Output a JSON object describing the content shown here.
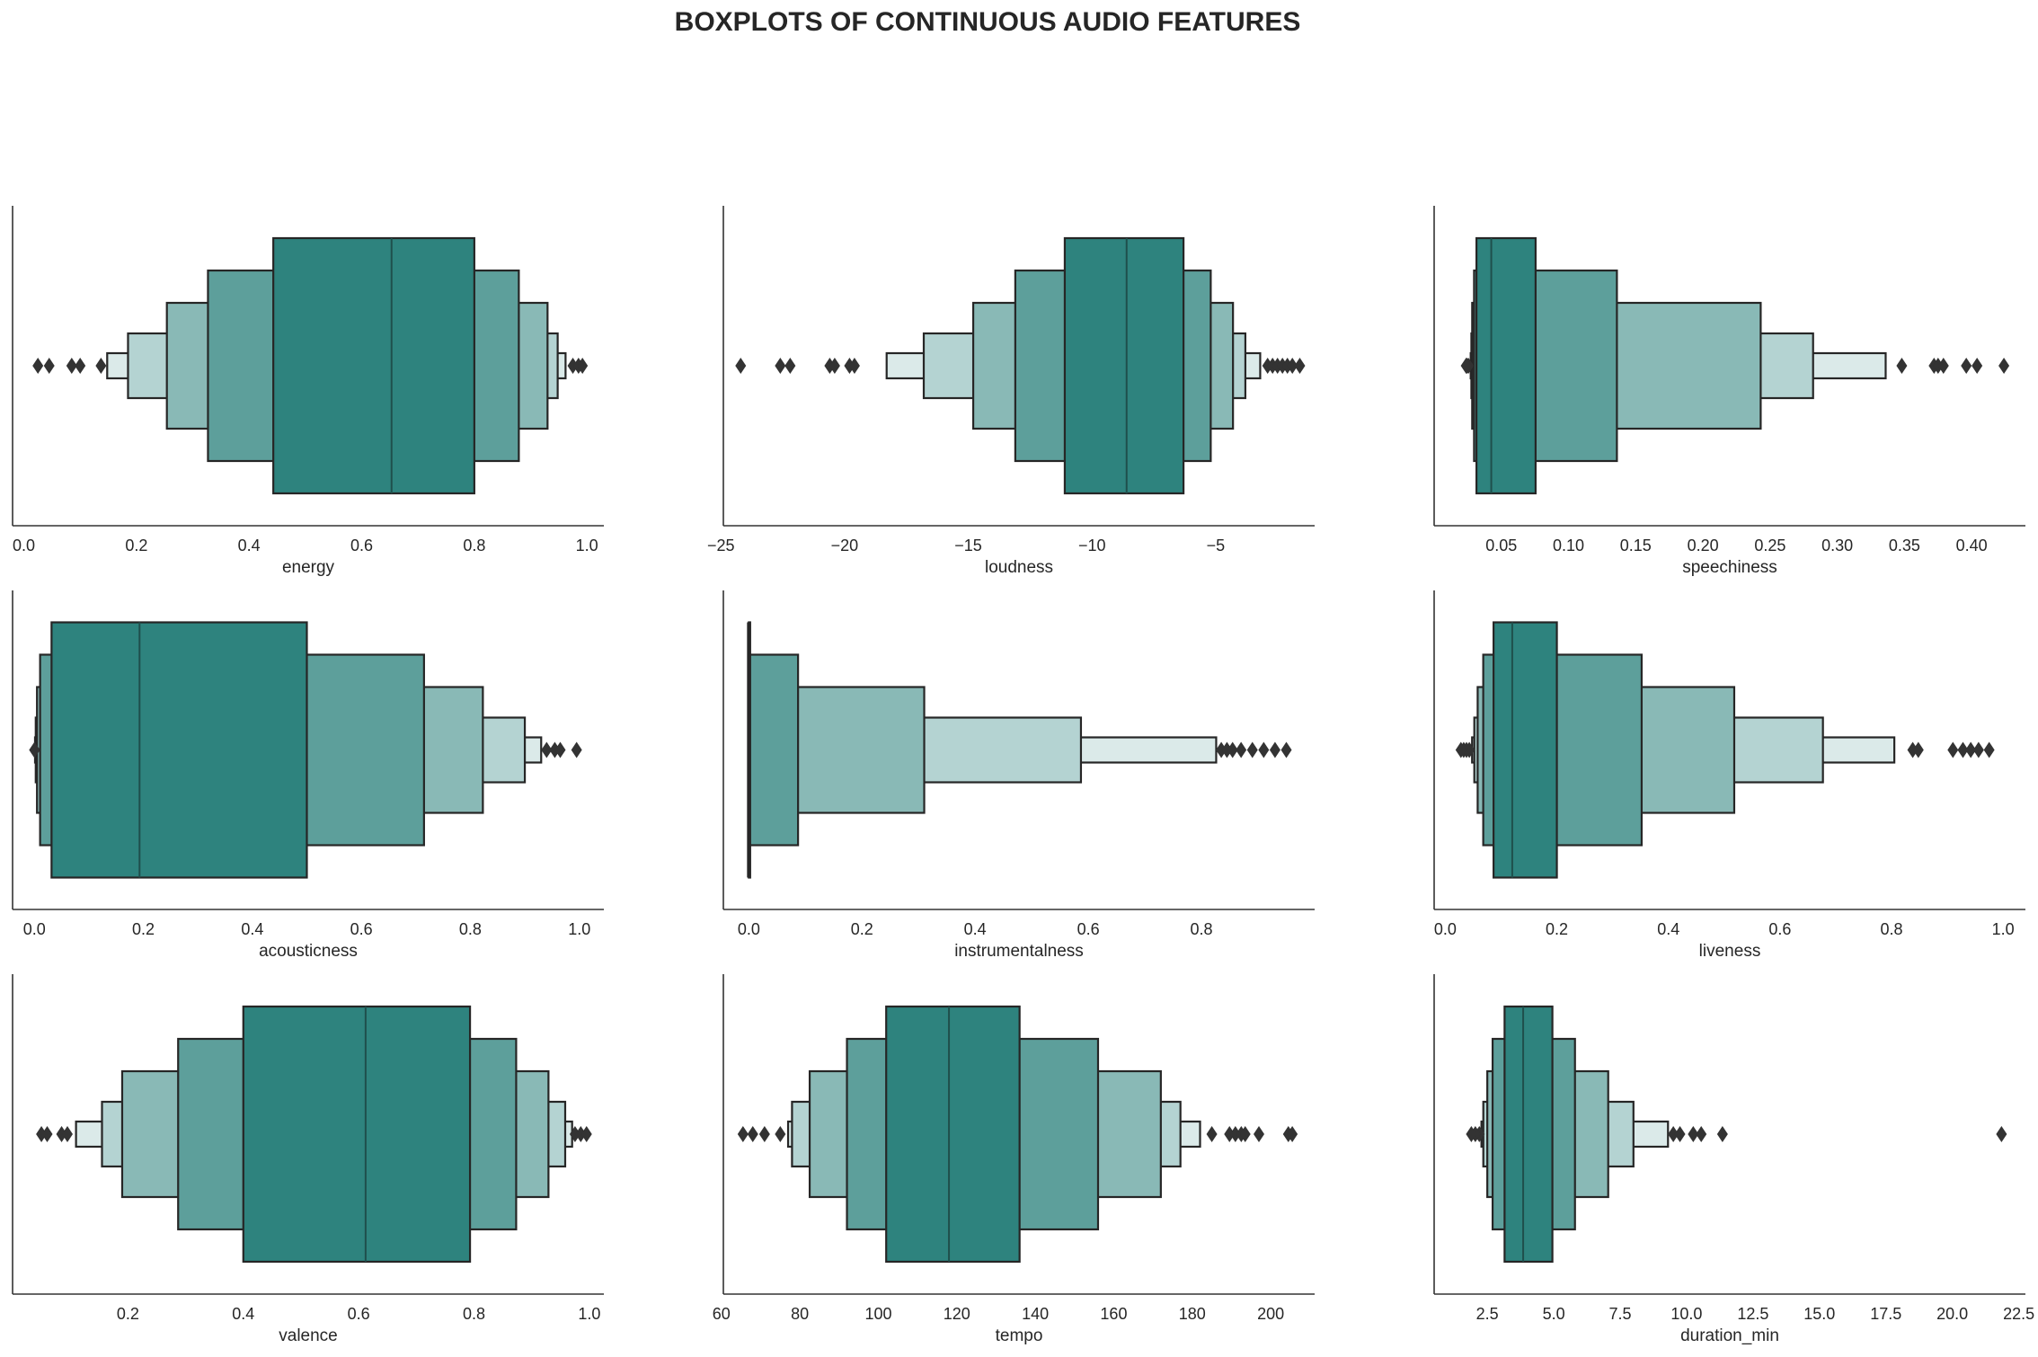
{
  "figure": {
    "title": "BOXPLOTS OF CONTINUOUS AUDIO FEATURES"
  },
  "chart_data": [
    {
      "type": "boxen",
      "xlabel": "energy",
      "xlim": [
        -0.02,
        1.03
      ],
      "ticks": [
        0.0,
        0.2,
        0.4,
        0.6,
        0.8,
        1.0
      ],
      "tick_labels": [
        "0.0",
        "0.2",
        "0.4",
        "0.6",
        "0.8",
        "1.0"
      ],
      "median": 0.653,
      "levels": [
        [
          0.443,
          0.8
        ],
        [
          0.327,
          0.879
        ],
        [
          0.254,
          0.93
        ],
        [
          0.185,
          0.948
        ],
        [
          0.148,
          0.962
        ]
      ],
      "outliers": [
        0.025,
        0.045,
        0.085,
        0.1,
        0.137,
        0.975,
        0.985,
        0.992
      ]
    },
    {
      "type": "boxen",
      "xlabel": "loudness",
      "xlim": [
        -24.9,
        -1.0
      ],
      "ticks": [
        -25,
        -20,
        -15,
        -10,
        -5
      ],
      "tick_labels": [
        "−25",
        "−20",
        "−15",
        "−10",
        "−5"
      ],
      "median": -8.6,
      "levels": [
        [
          -11.1,
          -6.3
        ],
        [
          -13.1,
          -5.2
        ],
        [
          -14.8,
          -4.3
        ],
        [
          -16.8,
          -3.8
        ],
        [
          -18.3,
          -3.2
        ]
      ],
      "outliers": [
        -24.2,
        -22.6,
        -22.2,
        -20.6,
        -20.4,
        -19.8,
        -19.6,
        -2.9,
        -2.7,
        -2.5,
        -2.3,
        -2.1,
        -1.9,
        -1.6
      ]
    },
    {
      "type": "boxen",
      "xlabel": "speechiness",
      "xlim": [
        0.0,
        0.44
      ],
      "ticks": [
        0.05,
        0.1,
        0.15,
        0.2,
        0.25,
        0.3,
        0.35,
        0.4
      ],
      "tick_labels": [
        "0.05",
        "0.10",
        "0.15",
        "0.20",
        "0.25",
        "0.30",
        "0.35",
        "0.40"
      ],
      "median": 0.0425,
      "levels": [
        [
          0.0315,
          0.0755
        ],
        [
          0.0297,
          0.136
        ],
        [
          0.0283,
          0.243
        ],
        [
          0.0277,
          0.282
        ],
        [
          0.0272,
          0.336
        ]
      ],
      "outliers": [
        0.0255,
        0.0245,
        0.0238,
        0.348,
        0.372,
        0.375,
        0.379,
        0.396,
        0.404,
        0.424
      ]
    },
    {
      "type": "boxen",
      "xlabel": "acousticness",
      "xlim": [
        -0.04,
        1.045
      ],
      "ticks": [
        0.0,
        0.2,
        0.4,
        0.6,
        0.8,
        1.0
      ],
      "tick_labels": [
        "0.0",
        "0.2",
        "0.4",
        "0.6",
        "0.8",
        "1.0"
      ],
      "median": 0.193,
      "levels": [
        [
          0.0315,
          0.5
        ],
        [
          0.0105,
          0.715
        ],
        [
          0.0048,
          0.823
        ],
        [
          0.0025,
          0.9
        ],
        [
          0.0012,
          0.93
        ]
      ],
      "outliers": [
        0.0005,
        0.0002,
        0.94,
        0.955,
        0.965,
        0.995
      ]
    },
    {
      "type": "boxen",
      "xlabel": "instrumentalness",
      "xlim": [
        -0.045,
        1.0
      ],
      "ticks": [
        0.0,
        0.2,
        0.4,
        0.6,
        0.8
      ],
      "tick_labels": [
        "0.0",
        "0.2",
        "0.4",
        "0.6",
        "0.8"
      ],
      "median": 0.0,
      "levels": [
        [
          0.0,
          0.0005
        ],
        [
          0.0,
          0.087
        ],
        [
          0.0,
          0.31
        ],
        [
          0.0,
          0.587
        ],
        [
          0.0,
          0.826
        ]
      ],
      "outliers": [
        0.835,
        0.845,
        0.855,
        0.87,
        0.89,
        0.91,
        0.93,
        0.95
      ]
    },
    {
      "type": "boxen",
      "xlabel": "liveness",
      "xlim": [
        -0.02,
        1.04
      ],
      "ticks": [
        0.0,
        0.2,
        0.4,
        0.6,
        0.8,
        1.0
      ],
      "tick_labels": [
        "0.0",
        "0.2",
        "0.4",
        "0.6",
        "0.8",
        "1.0"
      ],
      "median": 0.12,
      "levels": [
        [
          0.0865,
          0.2
        ],
        [
          0.068,
          0.352
        ],
        [
          0.058,
          0.518
        ],
        [
          0.052,
          0.677
        ],
        [
          0.048,
          0.805
        ]
      ],
      "outliers": [
        0.043,
        0.038,
        0.033,
        0.028,
        0.838,
        0.848,
        0.91,
        0.928,
        0.942,
        0.956,
        0.975
      ]
    },
    {
      "type": "boxen",
      "xlabel": "valence",
      "xlim": [
        0.0,
        1.025
      ],
      "ticks": [
        0.2,
        0.4,
        0.6,
        0.8,
        1.0
      ],
      "tick_labels": [
        "0.2",
        "0.4",
        "0.6",
        "0.8",
        "1.0"
      ],
      "median": 0.612,
      "levels": [
        [
          0.4,
          0.793
        ],
        [
          0.287,
          0.873
        ],
        [
          0.19,
          0.929
        ],
        [
          0.155,
          0.958
        ],
        [
          0.11,
          0.97
        ]
      ],
      "outliers": [
        0.05,
        0.06,
        0.085,
        0.095,
        0.975,
        0.985,
        0.995
      ]
    },
    {
      "type": "boxen",
      "xlabel": "tempo",
      "xlim": [
        60.5,
        211.2
      ],
      "ticks": [
        60,
        80,
        100,
        120,
        140,
        160,
        180,
        200
      ],
      "tick_labels": [
        "60",
        "80",
        "100",
        "120",
        "140",
        "160",
        "180",
        "200"
      ],
      "median": 118.0,
      "levels": [
        [
          102.0,
          136.0
        ],
        [
          92.0,
          156.0
        ],
        [
          82.5,
          172.0
        ],
        [
          78.0,
          177.0
        ],
        [
          77.0,
          182.0
        ]
      ],
      "outliers": [
        65.5,
        68.0,
        71.0,
        75.0,
        185.0,
        189.5,
        191.0,
        192.5,
        193.5,
        197.0,
        204.5,
        205.5
      ]
    },
    {
      "type": "boxen",
      "xlabel": "duration_min",
      "xlim": [
        0.5,
        22.75
      ],
      "ticks": [
        2.5,
        5.0,
        7.5,
        10.0,
        12.5,
        15.0,
        17.5,
        20.0,
        22.5
      ],
      "tick_labels": [
        "2.5",
        "5.0",
        "7.5",
        "10.0",
        "12.5",
        "15.0",
        "17.5",
        "20.0",
        "22.5"
      ],
      "median": 3.85,
      "levels": [
        [
          3.15,
          4.95
        ],
        [
          2.7,
          5.8
        ],
        [
          2.5,
          7.05
        ],
        [
          2.35,
          8.0
        ],
        [
          2.28,
          9.3
        ]
      ],
      "outliers": [
        2.2,
        2.05,
        1.9,
        9.5,
        9.75,
        10.25,
        10.55,
        11.35,
        21.85
      ]
    }
  ],
  "colors": {
    "levels": [
      "#2e837e",
      "#5d9f9b",
      "#89b9b6",
      "#b4d3d2",
      "#dbeae9"
    ],
    "edge": "#262626",
    "spine": "#333333"
  }
}
